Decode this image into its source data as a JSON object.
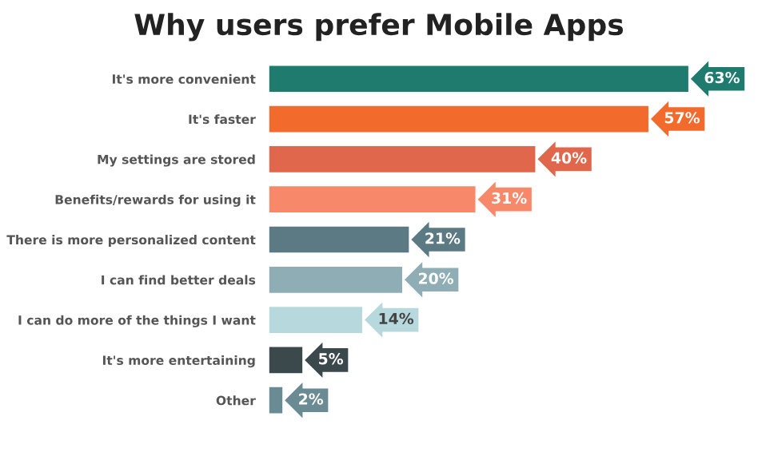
{
  "chart_data": {
    "type": "bar",
    "orientation": "horizontal",
    "title": "Why users prefer Mobile Apps",
    "categories": [
      "It's more convenient",
      "It's faster",
      "My settings are stored",
      "Benefits/rewards for using it",
      "There is more personalized content",
      "I can find better deals",
      "I can do more of the things I want",
      "It's more entertaining",
      "Other"
    ],
    "values": [
      63,
      57,
      40,
      31,
      21,
      20,
      14,
      5,
      2
    ],
    "colors": [
      "#1e7b6e",
      "#f26a2c",
      "#e0674c",
      "#f7896a",
      "#5b7a84",
      "#8eadb5",
      "#b7d8dc",
      "#3b484c",
      "#6a8a94"
    ],
    "value_labels": [
      "63%",
      "57%",
      "40%",
      "31%",
      "21%",
      "20%",
      "14%",
      "5%",
      "2%"
    ],
    "grid": false,
    "legend": false
  }
}
